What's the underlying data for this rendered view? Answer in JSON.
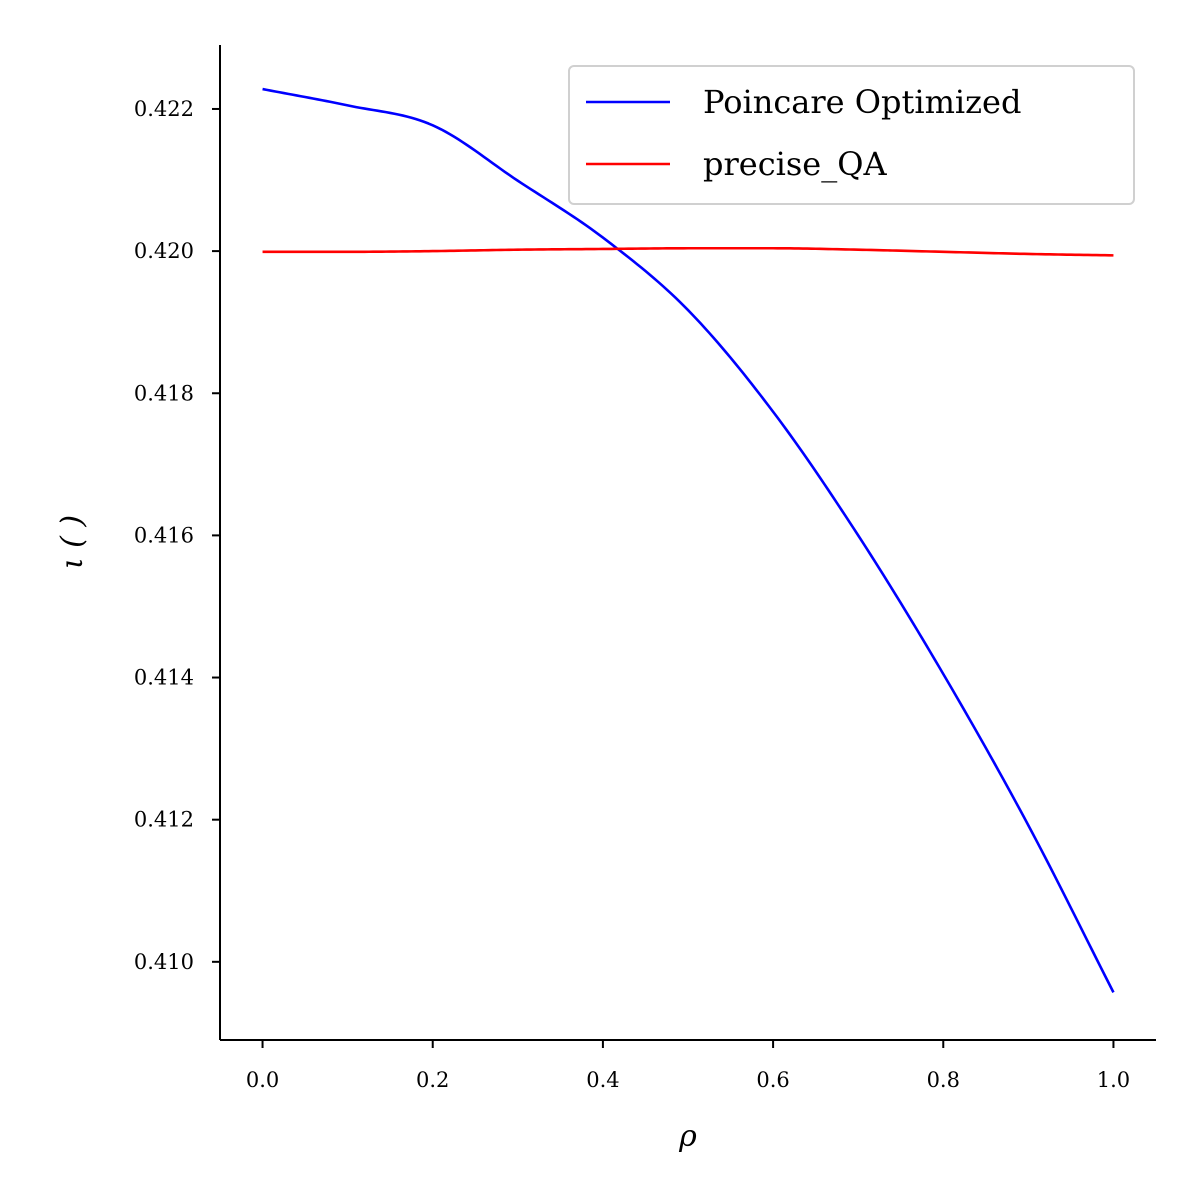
{
  "chart_data": {
    "type": "line",
    "xlabel": "ρ",
    "ylabel": "ι ( )",
    "xlim": [
      -0.05,
      1.05
    ],
    "ylim": [
      0.4089,
      0.4229
    ],
    "xticks": [
      0.0,
      0.2,
      0.4,
      0.6,
      0.8,
      1.0
    ],
    "xtick_labels": [
      "0.0",
      "0.2",
      "0.4",
      "0.6",
      "0.8",
      "1.0"
    ],
    "yticks": [
      0.41,
      0.412,
      0.414,
      0.416,
      0.418,
      0.42,
      0.422
    ],
    "ytick_labels": [
      "0.410",
      "0.412",
      "0.414",
      "0.416",
      "0.418",
      "0.420",
      "0.422"
    ],
    "grid": false,
    "legend_position": "top-right",
    "x": [
      0.0,
      0.1,
      0.2,
      0.3,
      0.4,
      0.5,
      0.6,
      0.7,
      0.8,
      0.9,
      1.0
    ],
    "series": [
      {
        "name": "Poincare Optimized",
        "color": "#0000ff",
        "values": [
          0.42228,
          0.42205,
          0.42177,
          0.42099,
          0.42019,
          0.41917,
          0.41774,
          0.416,
          0.41405,
          0.41192,
          0.40957
        ]
      },
      {
        "name": "precise_QA",
        "color": "#ff0000",
        "values": [
          0.41999,
          0.41999,
          0.42,
          0.42002,
          0.42003,
          0.42004,
          0.42004,
          0.42002,
          0.41999,
          0.41996,
          0.41994
        ]
      }
    ]
  }
}
